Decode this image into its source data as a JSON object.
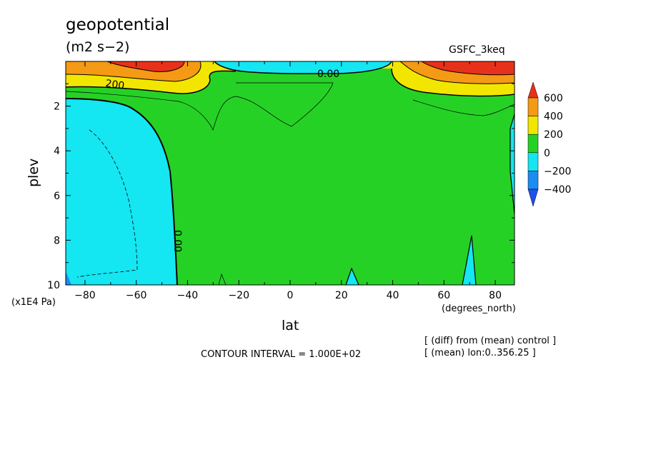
{
  "chart_data": {
    "type": "heatmap",
    "title": "geopotential",
    "units": "(m2 s−2)",
    "dataset": "GSFC_3keq",
    "xlabel": "lat",
    "x_unit": "(degrees_north)",
    "ylabel": "plev",
    "y_scale_label": "(x1E4 Pa)",
    "xlim": [
      -87.5,
      87.5
    ],
    "ylim": [
      10,
      0
    ],
    "x_ticks": [
      "-80",
      "-60",
      "-40",
      "-20",
      "0",
      "20",
      "40",
      "60",
      "80"
    ],
    "y_ticks": [
      "2",
      "4",
      "6",
      "8",
      "10"
    ],
    "contour_labels": [
      "200.",
      "0.00",
      "0.00"
    ],
    "contour_interval_text": "CONTOUR INTERVAL = 1.000E+02",
    "notes": [
      "[ (diff) from (mean) control ]",
      "[ (mean) lon:0..356.25 ]"
    ],
    "colorbar": {
      "labels": [
        "600",
        "400",
        "200",
        "0",
        "−200",
        "−400"
      ],
      "colors": [
        "#e8311a",
        "#f59a14",
        "#f2e600",
        "#26d126",
        "#14e6f2",
        "#1a8cf2",
        "#1e50f0"
      ]
    }
  }
}
